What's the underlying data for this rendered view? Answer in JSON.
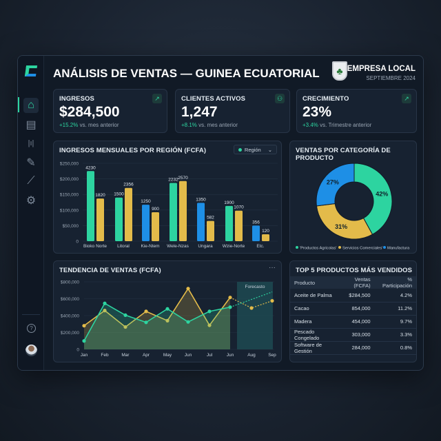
{
  "header": {
    "title": "ANÁLISIS DE VENTAS — GUINEA ECUATORIAL",
    "company": "EMPRESA LOCAL",
    "period": "SEPTIEMBRE 2024"
  },
  "sidebar": {
    "items": [
      {
        "icon": "home-icon",
        "active": true
      },
      {
        "icon": "list-icon"
      },
      {
        "icon": "bar-chart-icon"
      },
      {
        "icon": "edit-icon"
      },
      {
        "icon": "line-chart-icon"
      },
      {
        "icon": "gear-icon"
      }
    ],
    "help_icon": "help-icon",
    "avatar": "user-avatar"
  },
  "kpis": [
    {
      "label": "INGRESOS",
      "value": "$284,500",
      "delta": "+15.2%",
      "compare": "vs. mes anterior",
      "icon": "trend-up-icon"
    },
    {
      "label": "CLIENTES ACTIVOS",
      "value": "1,247",
      "delta": "+8.1%",
      "compare": "vs. mes anterior",
      "icon": "users-icon"
    },
    {
      "label": "CRECIMIENTO",
      "value": "23%",
      "delta": "+3.4%",
      "compare": "vs. Trimestre anterior",
      "icon": "arrow-up-right-icon"
    }
  ],
  "colors": {
    "teal": "#2dd4a0",
    "yellow": "#e3bb4a",
    "blue": "#1e8fe6"
  },
  "chart_data": [
    {
      "type": "bar",
      "title": "INGRESOS MENSUALES POR REGIÓN (FCFA)",
      "filter_label": "Región",
      "categories": [
        "Bioko Norte",
        "Litoral",
        "Kie-Ntem",
        "Wele-Nzas",
        "Ungara",
        "Wzie-Norte",
        "Etc."
      ],
      "ylim": [
        0,
        250000
      ],
      "yticks": [
        "0",
        "$50,000",
        "$100,000",
        "$150,000",
        "$200,000",
        "$250,000"
      ],
      "first_bar_colors": [
        "teal",
        "teal",
        "blue",
        "teal",
        "blue",
        "teal",
        "blue"
      ],
      "series": [
        {
          "values": [
            225000,
            140000,
            117000,
            187000,
            123000,
            113000,
            50000
          ],
          "labels": [
            "4230",
            "1500",
            "1250",
            "2232",
            "1350",
            "1900",
            "356"
          ]
        },
        {
          "values": [
            137000,
            171000,
            93000,
            193000,
            65000,
            98000,
            22000
          ],
          "labels": [
            "1820",
            "2356",
            "900",
            "2570",
            "582",
            "1070",
            "120"
          ]
        }
      ]
    },
    {
      "type": "pie",
      "title": "VENTAS POR CATEGORÍA DE PRODUCTO",
      "legend": "bottom",
      "slices": [
        {
          "name": "'Productos Agricolas'",
          "value": 42,
          "label": "42%",
          "color": "#2dd4a0"
        },
        {
          "name": "Servicios Comerciales'",
          "value": 31,
          "label": "31%",
          "color": "#e3bb4a"
        },
        {
          "name": "Manufactura",
          "value": 27,
          "label": "27%",
          "color": "#1e8fe6"
        }
      ]
    },
    {
      "type": "line",
      "title": "TENDENCIA DE VENTAS (FCFA)",
      "menu": "···",
      "forecast_label": "Forecasto",
      "x": [
        "Jan",
        "Feb",
        "Mar",
        "Apr",
        "May",
        "Jun",
        "Jul",
        "Jun",
        "Aug",
        "Sep"
      ],
      "forecast_from_index": 7,
      "ylim": [
        0,
        800000
      ],
      "yticks": [
        "0",
        "$200,000",
        "$400,000",
        "$600,000",
        "$800,000"
      ],
      "series": [
        {
          "color": "#2dd4a0",
          "values": [
            100000,
            545000,
            405000,
            320000,
            480000,
            325000,
            450000,
            500000,
            null,
            680000
          ]
        },
        {
          "color": "#e3bb4a",
          "values": [
            280000,
            460000,
            265000,
            450000,
            340000,
            720000,
            285000,
            615000,
            490000,
            575000
          ]
        }
      ]
    }
  ],
  "table": {
    "title": "TOP 5 PRODUCTOS MÁS VENDIDOS",
    "columns": [
      "Producto",
      "Ventas (FCFA)",
      "% Participación"
    ],
    "rows": [
      [
        "Aceite de Palma",
        "$284,500",
        "4.2%"
      ],
      [
        "Cacao",
        "854,000",
        "11.2%"
      ],
      [
        "Madera",
        "454,000",
        "9.7%"
      ],
      [
        "Pescado Congelado",
        "303,000",
        "3.3%"
      ],
      [
        "Software de Gestión",
        "284,000",
        "0.8%"
      ]
    ]
  }
}
